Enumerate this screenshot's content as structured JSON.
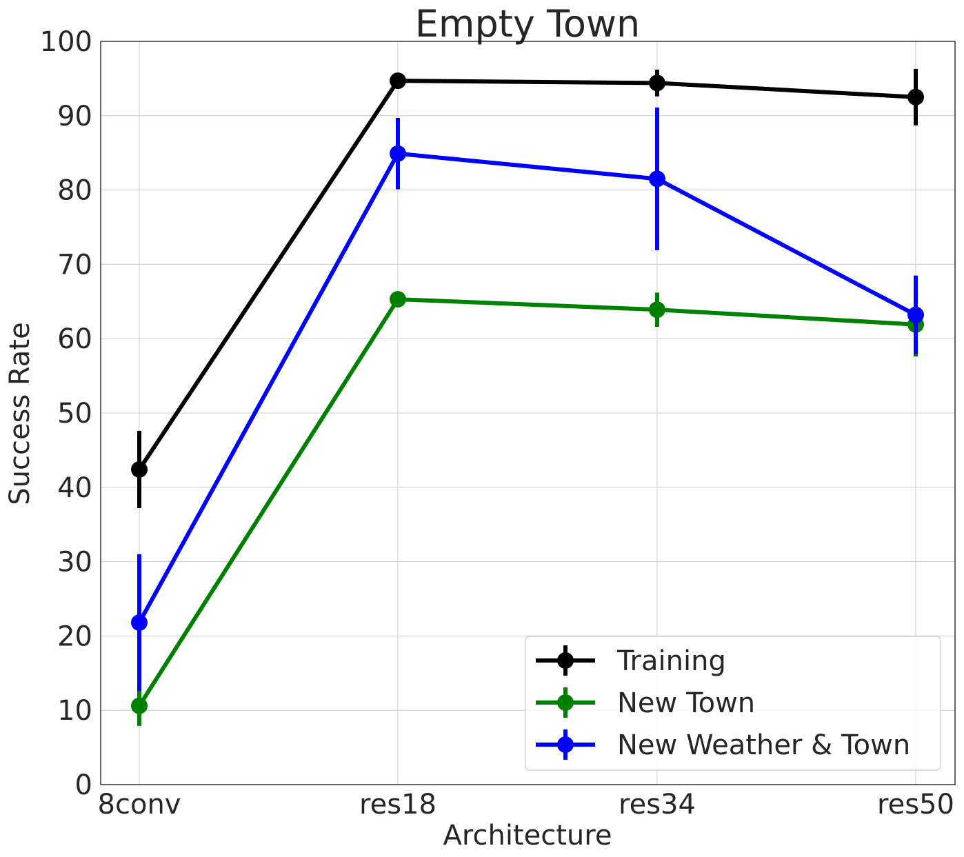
{
  "chart_data": {
    "type": "line",
    "title": "Empty Town",
    "xlabel": "Architecture",
    "ylabel": "Success Rate",
    "categories": [
      "8conv",
      "res18",
      "res34",
      "res50"
    ],
    "yticks": [
      0,
      10,
      20,
      30,
      40,
      50,
      60,
      70,
      80,
      90,
      100
    ],
    "ylim": [
      0,
      100
    ],
    "grid": true,
    "legend_position": "bottom-right",
    "series": [
      {
        "name": "Training",
        "color": "#000000",
        "values": [
          42.4,
          94.7,
          94.4,
          92.5
        ],
        "errors": [
          5.2,
          0.5,
          1.8,
          3.8
        ]
      },
      {
        "name": "New Town",
        "color": "#008000",
        "values": [
          10.6,
          65.3,
          63.9,
          61.9
        ],
        "errors": [
          2.7,
          0.5,
          2.3,
          4.3
        ]
      },
      {
        "name": "New Weather & Town",
        "color": "#0000ff",
        "values": [
          21.8,
          84.9,
          81.5,
          63.2
        ],
        "errors": [
          9.2,
          4.8,
          9.6,
          5.3
        ]
      }
    ]
  }
}
